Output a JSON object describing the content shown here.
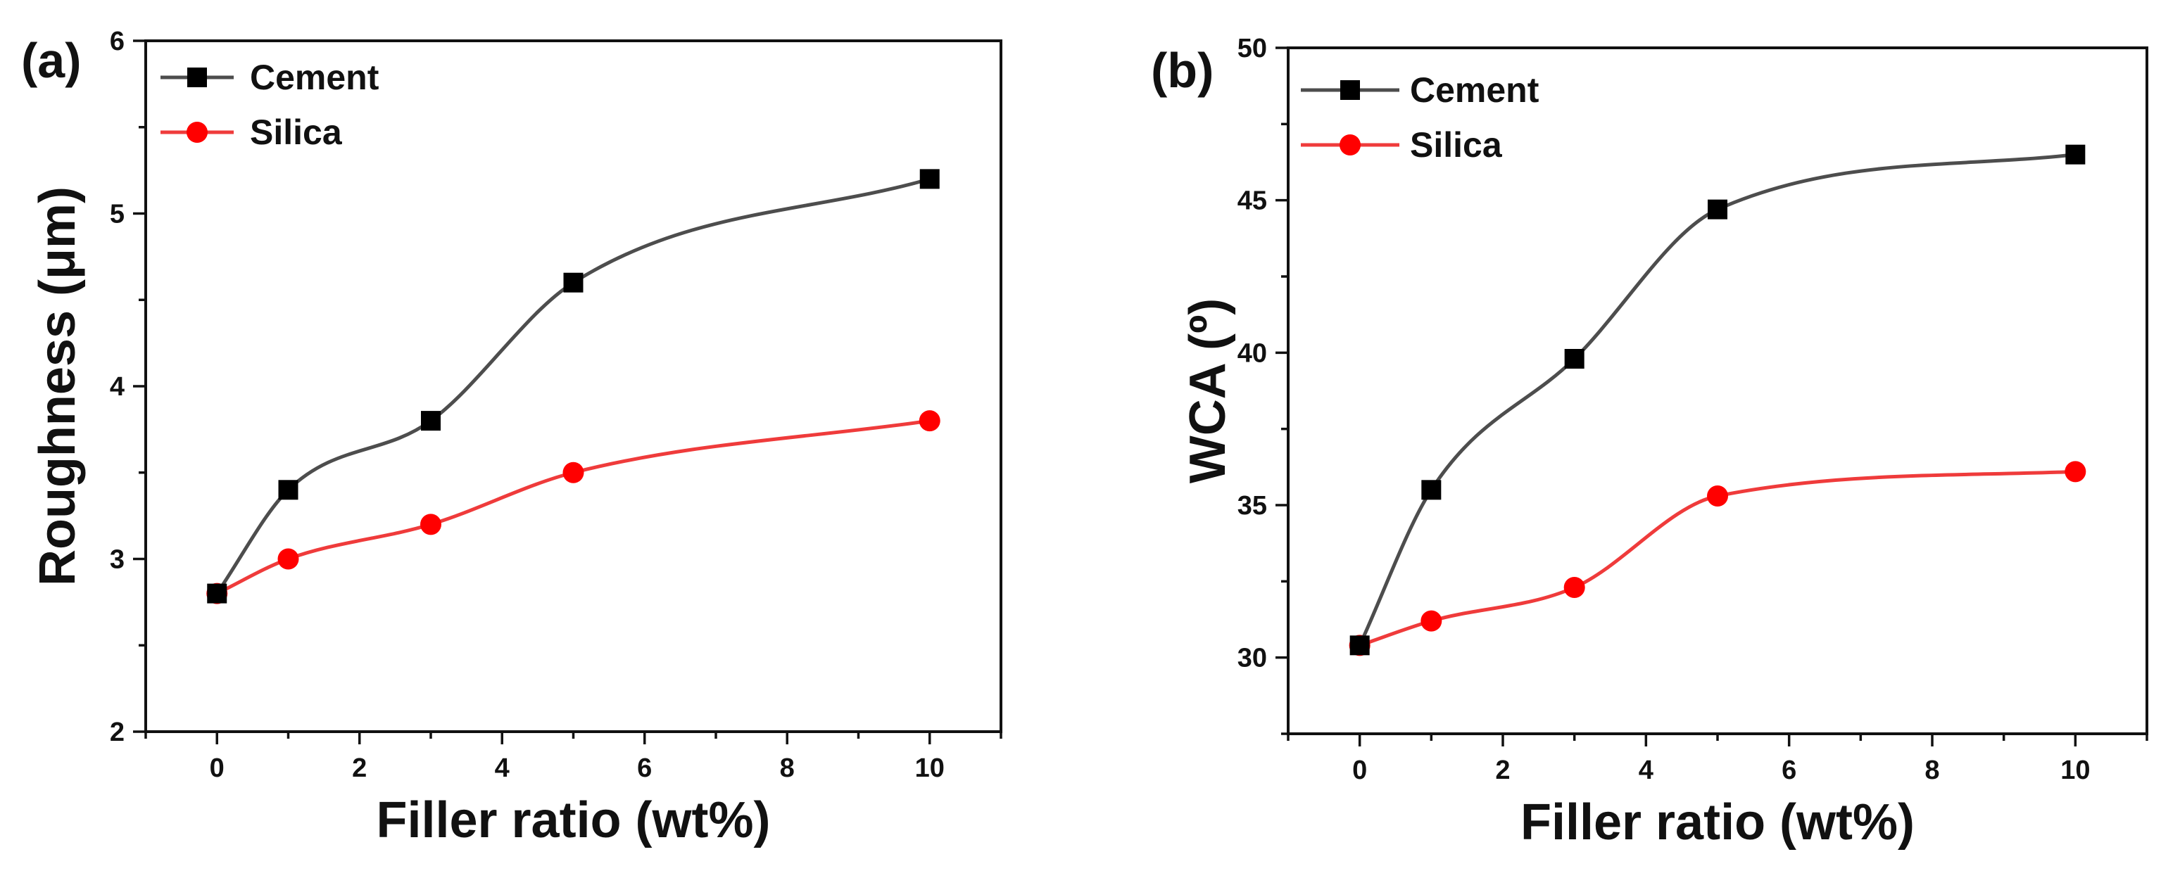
{
  "figure": {
    "background": "#ffffff",
    "axis_color": "#111111"
  },
  "chart_data": [
    {
      "panel_label": "(a)",
      "type": "line",
      "xlabel": "Filler ratio (wt%)",
      "ylabel": "Roughness (μm)",
      "xlim": [
        -1,
        11
      ],
      "ylim": [
        2,
        6
      ],
      "xticks": [
        "0",
        "2",
        "4",
        "6",
        "8",
        "10"
      ],
      "yticks": [
        "2",
        "3",
        "4",
        "5",
        "6"
      ],
      "legend_position": "top-left",
      "x": [
        0,
        1,
        3,
        5,
        10
      ],
      "series": [
        {
          "name": "Cement",
          "marker": "square",
          "line_color": "#4d4d4d",
          "marker_color": "#000000",
          "values": [
            2.8,
            3.4,
            3.8,
            4.6,
            5.2
          ]
        },
        {
          "name": "Silica",
          "marker": "circle",
          "line_color": "#ef3b3b",
          "marker_color": "#ff0000",
          "values": [
            2.8,
            3.0,
            3.2,
            3.5,
            3.8
          ]
        }
      ]
    },
    {
      "panel_label": "(b)",
      "type": "line",
      "xlabel": "Filler ratio (wt%)",
      "ylabel": "WCA (º)",
      "xlim": [
        -1,
        11
      ],
      "ylim": [
        27.5,
        50
      ],
      "xticks": [
        "0",
        "2",
        "4",
        "6",
        "8",
        "10"
      ],
      "yticks": [
        "30",
        "35",
        "40",
        "45",
        "50"
      ],
      "legend_position": "top-left",
      "x": [
        0,
        1,
        3,
        5,
        10
      ],
      "series": [
        {
          "name": "Cement",
          "marker": "square",
          "line_color": "#4d4d4d",
          "marker_color": "#000000",
          "values": [
            30.4,
            35.5,
            39.8,
            44.7,
            46.5
          ]
        },
        {
          "name": "Silica",
          "marker": "circle",
          "line_color": "#ef3b3b",
          "marker_color": "#ff0000",
          "values": [
            30.4,
            31.2,
            32.3,
            35.3,
            36.1
          ]
        }
      ]
    }
  ]
}
